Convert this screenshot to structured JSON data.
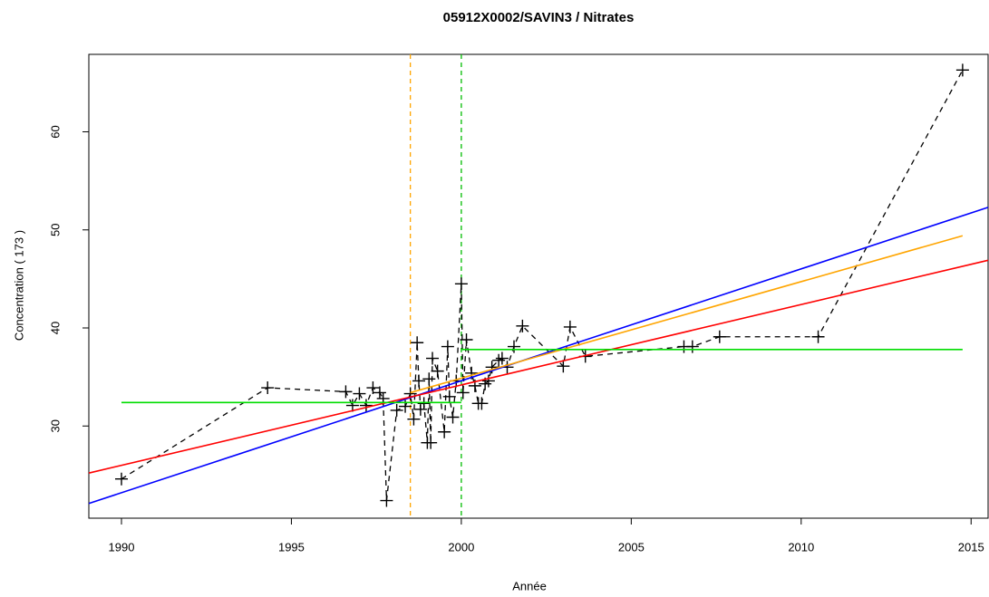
{
  "chart_data": {
    "type": "scatter",
    "title": "05912X0002/SAVIN3 / Nitrates",
    "x_label": "Année",
    "y_label": "Concentration ( 173 )",
    "xlim": [
      1989.04,
      2015.5
    ],
    "ylim": [
      20.6,
      67.9
    ],
    "xticks": [
      1990,
      1995,
      2000,
      2005,
      2010,
      2015
    ],
    "yticks": [
      30,
      40,
      50,
      60
    ],
    "series": [
      {
        "color": "#000000",
        "marker": "+",
        "line": "dashed",
        "x": [
          1990.0,
          1994.3,
          1996.6,
          1996.8,
          1997.0,
          1997.2,
          1997.4,
          1997.6,
          1997.7,
          1997.8,
          1998.1,
          1998.35,
          1998.5,
          1998.6,
          1998.7,
          1998.75,
          1998.8,
          1998.9,
          1999.0,
          1999.05,
          1999.1,
          1999.15,
          1999.3,
          1999.5,
          1999.6,
          1999.65,
          1999.75,
          1999.85,
          2000.0,
          2000.05,
          2000.15,
          2000.3,
          2000.4,
          2000.5,
          2000.6,
          2000.7,
          2000.8,
          2000.9,
          2001.1,
          2001.2,
          2001.35,
          2001.55,
          2001.8,
          2003.0,
          2003.2,
          2003.65,
          2006.55,
          2006.8,
          2007.6,
          2010.5,
          2014.75
        ],
        "values": [
          24.6,
          33.9,
          33.5,
          32.1,
          33.3,
          32.1,
          33.9,
          33.4,
          32.8,
          22.4,
          31.6,
          32.0,
          33.3,
          30.7,
          38.5,
          34.6,
          31.7,
          32.3,
          28.3,
          34.8,
          28.3,
          36.9,
          35.6,
          29.4,
          38.1,
          33.0,
          30.9,
          34.6,
          44.5,
          33.4,
          38.8,
          35.4,
          34.1,
          32.3,
          32.3,
          34.3,
          34.6,
          36.0,
          36.7,
          36.9,
          36.0,
          38.1,
          40.2,
          36.1,
          40.1,
          37.1,
          38.1,
          38.1,
          39.1,
          39.1,
          66.3
        ]
      },
      {
        "color": "#0000ff",
        "line": "solid",
        "x": [
          1989.04,
          2015.5
        ],
        "values": [
          22.1,
          52.3
        ]
      },
      {
        "color": "#ff0000",
        "line": "solid",
        "x": [
          1989.04,
          2015.5
        ],
        "values": [
          25.2,
          46.9
        ]
      },
      {
        "color": "#ffa500",
        "line": "solid",
        "x": [
          1998.5,
          2014.75
        ],
        "values": [
          33.4,
          49.4
        ]
      },
      {
        "color": "#00dd00",
        "line": "solid",
        "x": [
          1990.0,
          2000.0
        ],
        "values": [
          32.4,
          32.4
        ]
      },
      {
        "color": "#00dd00",
        "line": "solid",
        "x": [
          2000.0,
          2014.75
        ],
        "values": [
          37.8,
          37.8
        ]
      }
    ],
    "vlines": [
      {
        "x": 1998.5,
        "color": "#ffa500"
      },
      {
        "x": 2000.0,
        "color": "#00bb00"
      }
    ]
  }
}
